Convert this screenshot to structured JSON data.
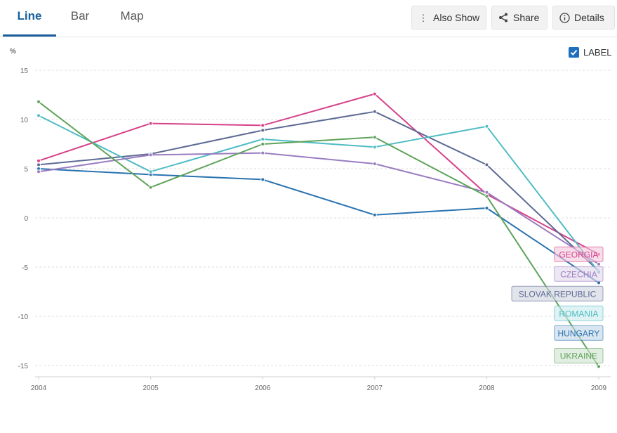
{
  "tabs": [
    {
      "label": "Line",
      "active": true
    },
    {
      "label": "Bar",
      "active": false
    },
    {
      "label": "Map",
      "active": false
    }
  ],
  "toolbar": {
    "also_show_label": "Also Show",
    "also_show_icon": "vertical-dots-icon",
    "share_label": "Share",
    "share_icon": "share-icon",
    "details_label": "Details",
    "details_icon": "info-icon"
  },
  "label_toggle": {
    "text": "LABEL",
    "checked": true
  },
  "chart_data": {
    "type": "line",
    "ylabel": "%",
    "x": [
      "2004",
      "2005",
      "2006",
      "2007",
      "2008",
      "2009"
    ],
    "ylim": [
      -15,
      15
    ],
    "yticks": [
      15,
      10,
      5,
      0,
      -5,
      -10,
      -15
    ],
    "grid": true,
    "legend": "end-labels",
    "series": [
      {
        "name": "GEORGIA",
        "color": "#d6418a",
        "values": [
          5.8,
          9.6,
          9.4,
          12.6,
          2.4,
          -3.7
        ]
      },
      {
        "name": "SLOVAK REPUBLIC",
        "color": "#5e6a94",
        "values": [
          5.4,
          6.5,
          8.9,
          10.8,
          5.4,
          -5.4
        ]
      },
      {
        "name": "HUNGARY",
        "color": "#2a73b0",
        "values": [
          5.0,
          4.4,
          3.9,
          0.3,
          1.0,
          -6.6
        ]
      },
      {
        "name": "ROMANIA",
        "color": "#4fbcc4",
        "values": [
          10.4,
          4.7,
          8.0,
          7.2,
          9.3,
          -5.5
        ]
      },
      {
        "name": "CZECHIA",
        "color": "#9a7cc0",
        "values": [
          4.7,
          6.4,
          6.6,
          5.5,
          2.6,
          -4.7
        ]
      },
      {
        "name": "UKRAINE",
        "color": "#5ea35a",
        "values": [
          11.8,
          3.1,
          7.5,
          8.2,
          2.2,
          -15.1
        ]
      }
    ]
  }
}
